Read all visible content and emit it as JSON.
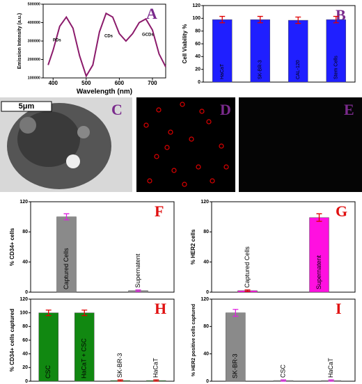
{
  "chart_data": [
    {
      "type": "line",
      "panel_label": "A",
      "label_color": "#7a2a8c",
      "x_label": "Wavelength (nm)",
      "y_label": "Emission Intensity (a.u.)",
      "x": [
        385,
        400,
        420,
        440,
        460,
        480,
        500,
        520,
        540,
        560,
        580,
        600,
        620,
        640,
        660,
        680,
        700,
        720,
        740
      ],
      "series": [
        {
          "name": "Emission",
          "color": "#8b1a6b",
          "values": [
            170000,
            250000,
            380000,
            430000,
            370000,
            220000,
            110000,
            170000,
            350000,
            450000,
            430000,
            340000,
            300000,
            340000,
            400000,
            420000,
            360000,
            230000,
            160000
          ]
        }
      ],
      "annotations": [
        "PDs",
        "CDs",
        "GCDs"
      ],
      "xlim": [
        370,
        740
      ],
      "xticks": [
        400,
        500,
        600,
        700
      ],
      "ylim": [
        100000,
        500000
      ],
      "yticks": [
        100000,
        200000,
        300000,
        400000,
        500000
      ]
    },
    {
      "type": "bar",
      "panel_label": "B",
      "label_color": "#7a2a8c",
      "y_label": "Cell Viability %",
      "categories": [
        "HaCaT",
        "SK-BR-3",
        "CAL-120",
        "Stem Cells"
      ],
      "values": [
        98,
        98,
        97,
        98
      ],
      "errors": [
        5,
        5,
        5,
        5
      ],
      "color": "#1f1fff",
      "error_color": "#e00000",
      "ylim": [
        0,
        120
      ],
      "yticks": [
        0,
        20,
        40,
        60,
        80,
        100,
        120
      ]
    },
    {
      "type": "bar",
      "panel_label": "F",
      "label_color": "#e01010",
      "y_label": "% CD34+ cells",
      "categories": [
        "Captured Cells",
        "Supernatent"
      ],
      "values": [
        100,
        2
      ],
      "errors": [
        4,
        1
      ],
      "color": "#8a8a8a",
      "error_color": "#e020e0",
      "ylim": [
        0,
        120
      ],
      "yticks": [
        0,
        40,
        80,
        120
      ]
    },
    {
      "type": "bar",
      "panel_label": "G",
      "label_color": "#e01010",
      "y_label": "% HER2 cells",
      "categories": [
        "Captured Cells",
        "Supernatent"
      ],
      "values": [
        2,
        99
      ],
      "errors": [
        1,
        5
      ],
      "color": "#ff10e0",
      "error_color": "#e00000",
      "ylim": [
        0,
        120
      ],
      "yticks": [
        0,
        40,
        80,
        120
      ]
    },
    {
      "type": "bar",
      "panel_label": "H",
      "label_color": "#e01010",
      "y_label": "% CD34+ cells captured",
      "categories": [
        "CSC",
        "HaCaT + CSC",
        "SK-BR-3",
        "HaCaT"
      ],
      "values": [
        100,
        100,
        1,
        1
      ],
      "errors": [
        4,
        4,
        1,
        1
      ],
      "color": "#118811",
      "error_color": "#e00000",
      "ylim": [
        0,
        120
      ],
      "yticks": [
        0,
        20,
        40,
        60,
        80,
        100,
        120
      ]
    },
    {
      "type": "bar",
      "panel_label": "I",
      "label_color": "#e01010",
      "y_label": "% HER2 positive cells captured",
      "categories": [
        "SK-BR-3",
        "CSC",
        "HaCaT"
      ],
      "values": [
        100,
        1,
        1
      ],
      "errors": [
        5,
        1,
        1
      ],
      "color": "#8a8a8a",
      "error_color": "#e020e0",
      "ylim": [
        0,
        120
      ],
      "yticks": [
        0,
        40,
        80,
        120
      ]
    }
  ],
  "images": [
    {
      "label": "C",
      "scale_bar": "5μm"
    },
    {
      "label": "D"
    },
    {
      "label": "E"
    }
  ]
}
